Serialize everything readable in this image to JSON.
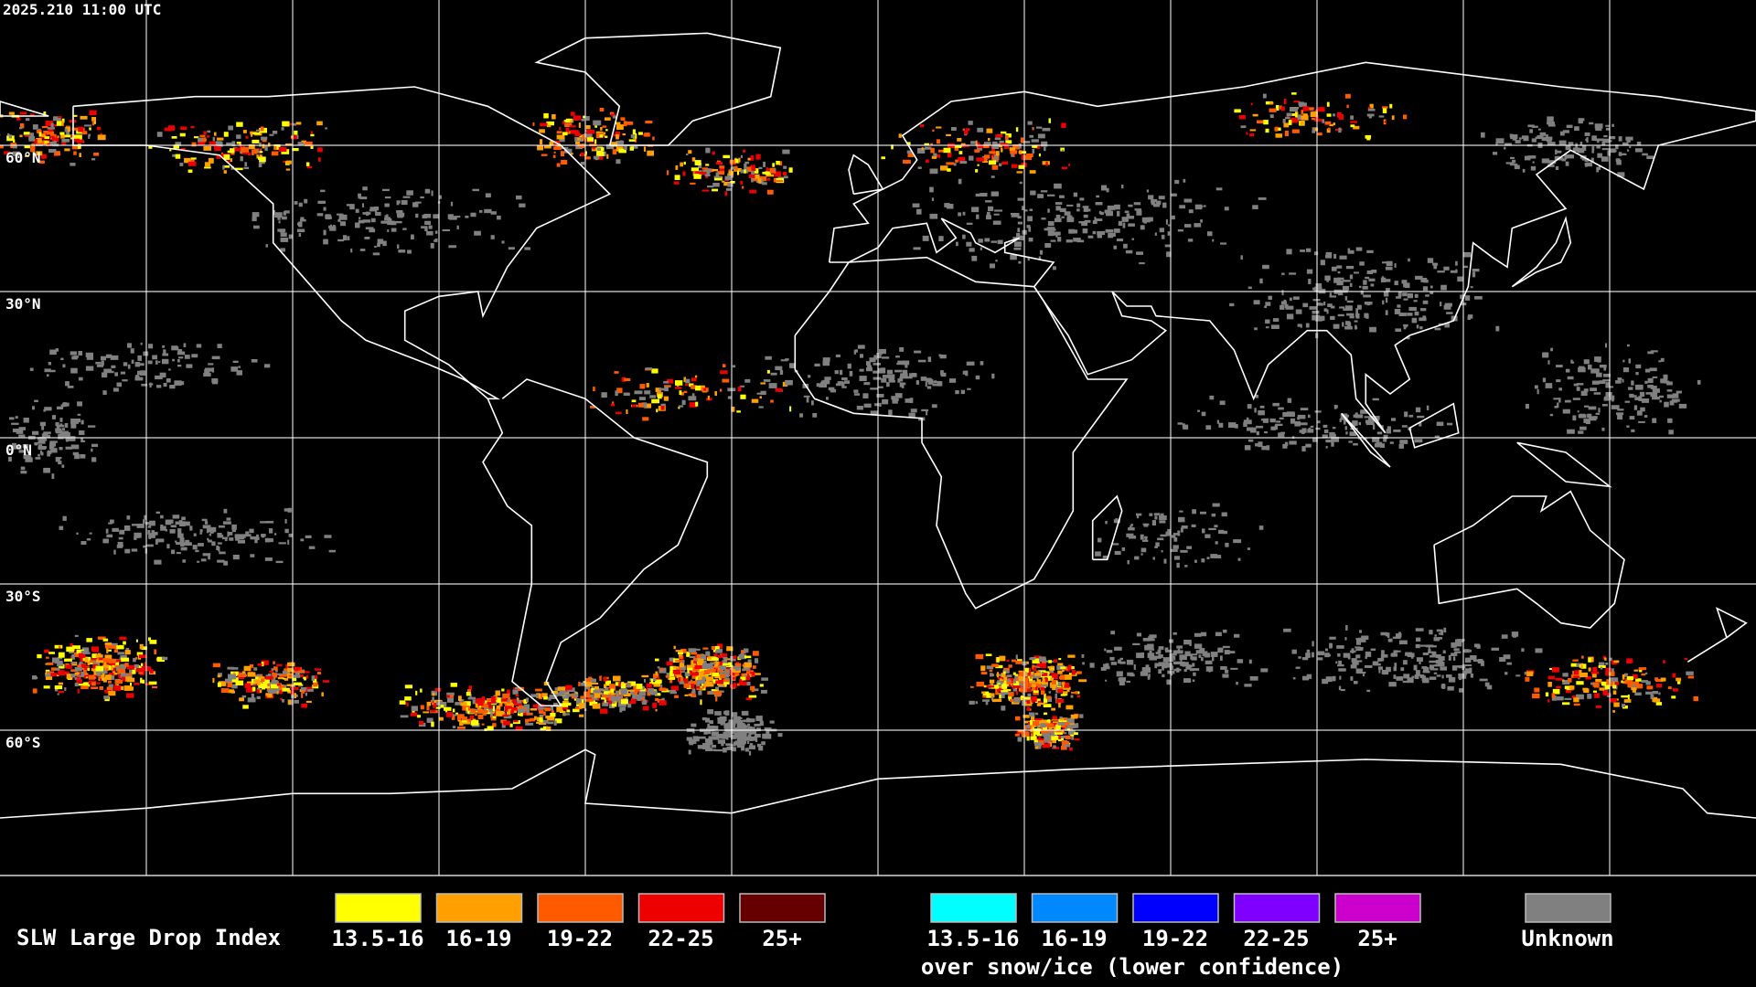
{
  "header": {
    "timestamp": "2025.210 11:00 UTC"
  },
  "map": {
    "lat_labels": [
      "60°N",
      "30°N",
      "0°N",
      "30°S",
      "60°S"
    ]
  },
  "legend": {
    "title": "SLW Large Drop Index",
    "items": [
      {
        "label": "13.5-16",
        "color": "#ffff00"
      },
      {
        "label": "16-19",
        "color": "#ffa000"
      },
      {
        "label": "19-22",
        "color": "#ff5a00"
      },
      {
        "label": "22-25",
        "color": "#ee0000"
      },
      {
        "label": "25+",
        "color": "#660000"
      }
    ],
    "snow_items": [
      {
        "label": "13.5-16",
        "color": "#00ffff"
      },
      {
        "label": "16-19",
        "color": "#0088ff"
      },
      {
        "label": "19-22",
        "color": "#0000ff"
      },
      {
        "label": "22-25",
        "color": "#8000ff"
      },
      {
        "label": "25+",
        "color": "#cc00cc"
      }
    ],
    "snow_caption": "over snow/ice (lower confidence)",
    "unknown": {
      "label": "Unknown",
      "color": "#808080"
    }
  }
}
